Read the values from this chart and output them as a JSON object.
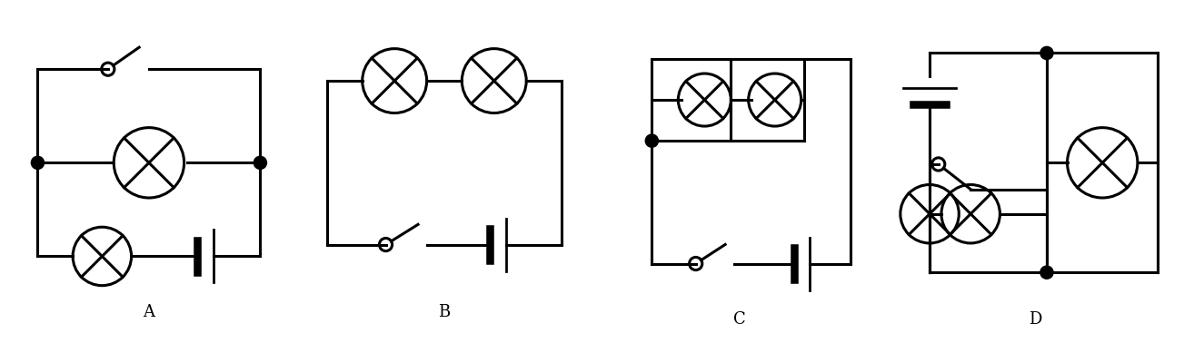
{
  "bg_color": "#ffffff",
  "lc": "#000000",
  "lw": 2.2,
  "labels": [
    "A",
    "B",
    "C",
    "D"
  ],
  "label_fs": 13,
  "figsize": [
    13.03,
    3.78
  ],
  "dpi": 100
}
